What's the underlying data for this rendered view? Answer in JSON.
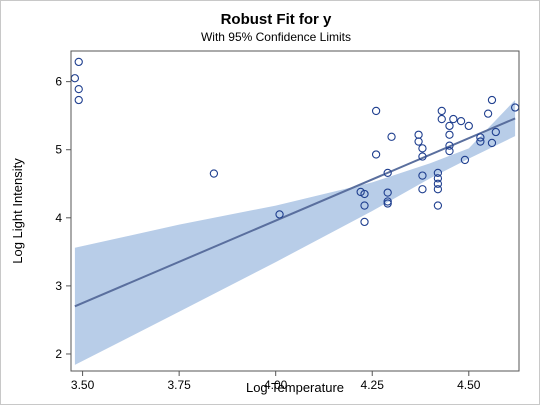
{
  "chart_data": {
    "type": "scatter",
    "title": "Robust Fit for y",
    "subtitle": "With 95% Confidence Limits",
    "xlabel": "Log Temperature",
    "ylabel": "Log Light Intensity",
    "xlim": [
      3.47,
      4.63
    ],
    "ylim": [
      1.75,
      6.45
    ],
    "xticks": [
      3.5,
      3.75,
      4.0,
      4.25,
      4.5
    ],
    "xtick_labels": [
      "3.50",
      "3.75",
      "4.00",
      "4.25",
      "4.50"
    ],
    "yticks": [
      2,
      3,
      4,
      5,
      6
    ],
    "ytick_labels": [
      "2",
      "3",
      "4",
      "5",
      "6"
    ],
    "grid": false,
    "legend": "none",
    "colors": {
      "points": "#1f3f8f",
      "fit_line": "#5a6f9e",
      "band": "#b8cde8"
    },
    "points": [
      {
        "x": 3.48,
        "y": 6.05
      },
      {
        "x": 3.49,
        "y": 6.29
      },
      {
        "x": 3.49,
        "y": 5.89
      },
      {
        "x": 3.49,
        "y": 5.73
      },
      {
        "x": 3.84,
        "y": 4.65
      },
      {
        "x": 4.01,
        "y": 4.05
      },
      {
        "x": 4.22,
        "y": 4.38
      },
      {
        "x": 4.23,
        "y": 4.35
      },
      {
        "x": 4.23,
        "y": 4.18
      },
      {
        "x": 4.23,
        "y": 3.94
      },
      {
        "x": 4.26,
        "y": 5.57
      },
      {
        "x": 4.26,
        "y": 4.93
      },
      {
        "x": 4.29,
        "y": 4.66
      },
      {
        "x": 4.29,
        "y": 4.37
      },
      {
        "x": 4.29,
        "y": 4.24
      },
      {
        "x": 4.29,
        "y": 4.21
      },
      {
        "x": 4.3,
        "y": 5.19
      },
      {
        "x": 4.37,
        "y": 5.22
      },
      {
        "x": 4.37,
        "y": 5.12
      },
      {
        "x": 4.38,
        "y": 5.02
      },
      {
        "x": 4.38,
        "y": 4.9
      },
      {
        "x": 4.38,
        "y": 4.62
      },
      {
        "x": 4.38,
        "y": 4.42
      },
      {
        "x": 4.42,
        "y": 4.66
      },
      {
        "x": 4.42,
        "y": 4.58
      },
      {
        "x": 4.42,
        "y": 4.5
      },
      {
        "x": 4.42,
        "y": 4.42
      },
      {
        "x": 4.42,
        "y": 4.18
      },
      {
        "x": 4.43,
        "y": 5.57
      },
      {
        "x": 4.43,
        "y": 5.45
      },
      {
        "x": 4.45,
        "y": 5.35
      },
      {
        "x": 4.45,
        "y": 5.22
      },
      {
        "x": 4.45,
        "y": 5.06
      },
      {
        "x": 4.45,
        "y": 4.98
      },
      {
        "x": 4.46,
        "y": 5.45
      },
      {
        "x": 4.48,
        "y": 5.42
      },
      {
        "x": 4.49,
        "y": 4.85
      },
      {
        "x": 4.5,
        "y": 5.35
      },
      {
        "x": 4.53,
        "y": 5.18
      },
      {
        "x": 4.53,
        "y": 5.12
      },
      {
        "x": 4.55,
        "y": 5.53
      },
      {
        "x": 4.56,
        "y": 5.73
      },
      {
        "x": 4.56,
        "y": 5.1
      },
      {
        "x": 4.57,
        "y": 5.26
      },
      {
        "x": 4.62,
        "y": 5.62
      }
    ],
    "fit": {
      "x": [
        3.48,
        4.62
      ],
      "y": [
        2.7,
        5.46
      ]
    },
    "confidence_band": {
      "x": [
        3.48,
        3.75,
        4.0,
        4.25,
        4.4,
        4.5,
        4.62
      ],
      "lower": [
        1.84,
        2.62,
        3.35,
        4.1,
        4.58,
        4.87,
        5.2
      ],
      "upper": [
        3.56,
        3.9,
        4.18,
        4.52,
        4.8,
        5.02,
        5.73
      ]
    }
  }
}
